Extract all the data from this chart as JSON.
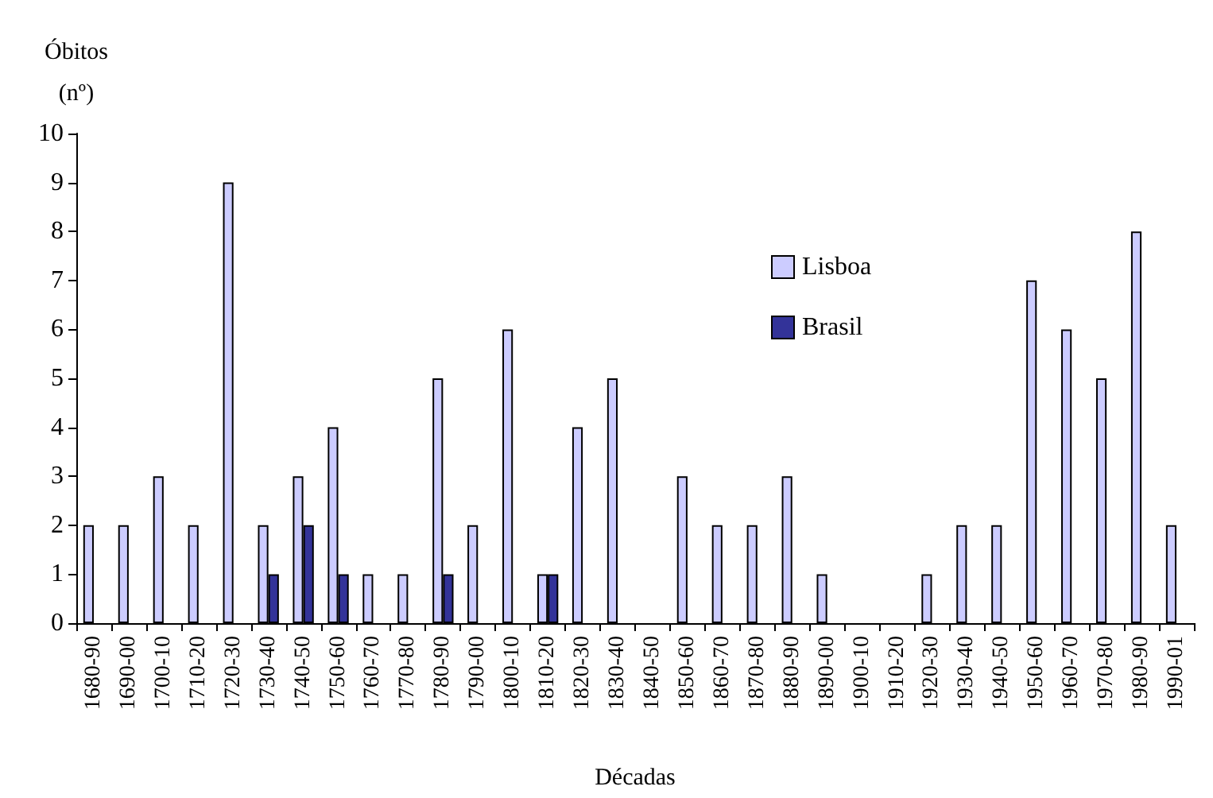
{
  "chart_data": {
    "type": "bar",
    "xlabel": "Décadas",
    "ylabel": "Óbitos\n(nº)",
    "categories": [
      "1680-90",
      "1690-00",
      "1700-10",
      "1710-20",
      "1720-30",
      "1730-40",
      "1740-50",
      "1750-60",
      "1760-70",
      "1770-80",
      "1780-90",
      "1790-00",
      "1800-10",
      "1810-20",
      "1820-30",
      "1830-40",
      "1840-50",
      "1850-60",
      "1860-70",
      "1870-80",
      "1880-90",
      "1890-00",
      "1900-10",
      "1910-20",
      "1920-30",
      "1930-40",
      "1940-50",
      "1950-60",
      "1960-70",
      "1970-80",
      "1980-90",
      "1990-01"
    ],
    "series": [
      {
        "name": "Lisboa",
        "color": "#ccccff",
        "values": [
          2,
          2,
          3,
          2,
          9,
          2,
          3,
          4,
          1,
          1,
          5,
          2,
          6,
          1,
          4,
          5,
          0,
          3,
          2,
          2,
          3,
          1,
          0,
          0,
          1,
          2,
          2,
          7,
          6,
          5,
          8,
          2
        ]
      },
      {
        "name": "Brasil",
        "color": "#333399",
        "values": [
          null,
          null,
          null,
          null,
          null,
          1,
          2,
          1,
          null,
          null,
          1,
          null,
          null,
          1,
          null,
          null,
          null,
          null,
          null,
          null,
          null,
          null,
          null,
          null,
          null,
          null,
          null,
          null,
          null,
          null,
          null,
          null
        ]
      }
    ],
    "ylim": [
      0,
      10
    ],
    "yticks": [
      0,
      1,
      2,
      3,
      4,
      5,
      6,
      7,
      8,
      9,
      10
    ],
    "grid": false,
    "legend": "right"
  }
}
